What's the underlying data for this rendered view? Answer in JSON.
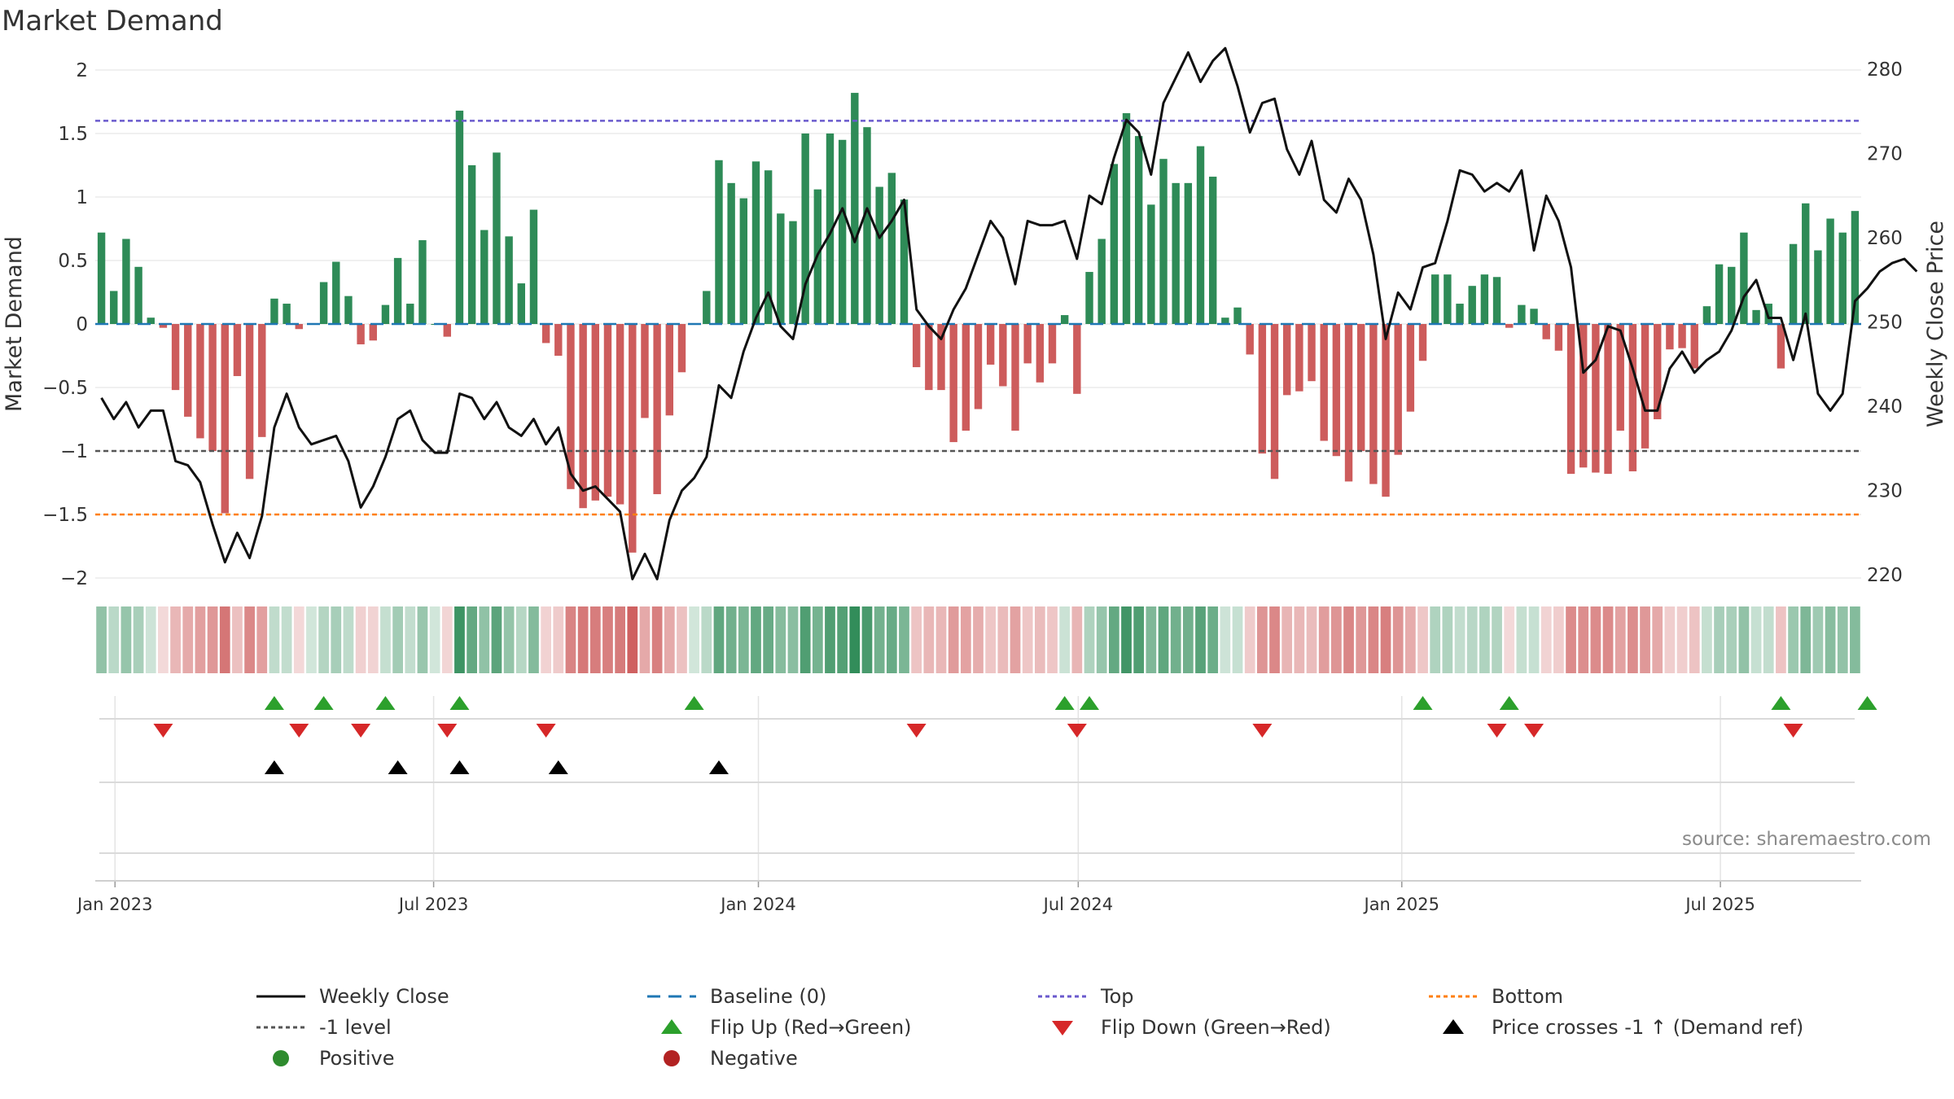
{
  "chart_data": {
    "type": "bar",
    "title": "Market Demand",
    "ylabel_left": "Market Demand",
    "ylabel_right": "Weekly Close Price",
    "ylim_left": [
      -2,
      2
    ],
    "ylim_right": [
      215,
      283
    ],
    "yticks_left": [
      "2",
      "1.5",
      "1",
      "0.5",
      "0",
      "−0.5",
      "−1",
      "−1.5",
      "−2"
    ],
    "yticks_left_values": [
      2,
      1.5,
      1,
      0.5,
      0,
      -0.5,
      -1,
      -1.5,
      -2
    ],
    "yticks_right": [
      "280",
      "270",
      "260",
      "250",
      "240",
      "230",
      "220"
    ],
    "yticks_right_values": [
      280,
      270,
      260,
      250,
      240,
      230,
      220
    ],
    "x_ticks": [
      {
        "label": "Jan 2023",
        "week": 1.6
      },
      {
        "label": "Jul 2023",
        "week": 27.4
      },
      {
        "label": "Jan 2024",
        "week": 53.7
      },
      {
        "label": "Jul 2024",
        "week": 79.6
      },
      {
        "label": "Jan 2025",
        "week": 105.8
      },
      {
        "label": "Jul 2025",
        "week": 131.6
      }
    ],
    "demand": [
      0.72,
      0.26,
      0.67,
      0.45,
      0.05,
      -0.03,
      -0.52,
      -0.73,
      -0.9,
      -1.0,
      -1.49,
      -0.41,
      -1.22,
      -0.89,
      0.2,
      0.16,
      -0.04,
      0.0,
      0.33,
      0.49,
      0.22,
      -0.16,
      -0.13,
      0.15,
      0.52,
      0.16,
      0.66,
      0.0,
      -0.1,
      1.68,
      1.25,
      0.74,
      1.35,
      0.69,
      0.32,
      0.9,
      -0.15,
      -0.25,
      -1.3,
      -1.45,
      -1.39,
      -1.36,
      -1.42,
      -1.8,
      -0.74,
      -1.34,
      -0.72,
      -0.38,
      0.0,
      0.26,
      1.29,
      1.11,
      0.99,
      1.28,
      1.21,
      0.87,
      0.81,
      1.5,
      1.06,
      1.5,
      1.45,
      1.82,
      1.55,
      1.08,
      1.19,
      0.98,
      -0.34,
      -0.52,
      -0.52,
      -0.93,
      -0.84,
      -0.67,
      -0.32,
      -0.49,
      -0.84,
      -0.31,
      -0.46,
      -0.31,
      0.07,
      -0.55,
      0.41,
      0.67,
      1.26,
      1.66,
      1.48,
      0.94,
      1.3,
      1.11,
      1.11,
      1.4,
      1.16,
      0.05,
      0.13,
      -0.24,
      -1.02,
      -1.22,
      -0.56,
      -0.53,
      -0.45,
      -0.92,
      -1.04,
      -1.24,
      -1.0,
      -1.26,
      -1.36,
      -1.03,
      -0.69,
      -0.29,
      0.39,
      0.39,
      0.16,
      0.3,
      0.39,
      0.37,
      -0.03,
      0.15,
      0.12,
      -0.12,
      -0.21,
      -1.18,
      -1.13,
      -1.17,
      -1.18,
      -0.84,
      -1.16,
      -0.98,
      -0.75,
      -0.2,
      -0.19,
      -0.35,
      0.14,
      0.47,
      0.45,
      0.72,
      0.11,
      0.16,
      -0.35,
      0.63,
      0.95,
      0.58,
      0.83,
      0.72,
      0.89
    ],
    "weekly_close": [
      241,
      238.5,
      240.5,
      237.5,
      239.5,
      239.5,
      233.5,
      233,
      231,
      226,
      221.5,
      225,
      222,
      227,
      237.5,
      241.5,
      237.5,
      235.5,
      236,
      236.5,
      233.5,
      228,
      230.5,
      234,
      238.5,
      239.5,
      236,
      234.5,
      234.5,
      241.5,
      241,
      238.5,
      240.5,
      237.5,
      236.5,
      238.5,
      235.5,
      237.5,
      232,
      230,
      230.5,
      229,
      227.5,
      219.5,
      222.5,
      219.5,
      226.5,
      230,
      231.5,
      234,
      242.5,
      241,
      246.5,
      250.5,
      253.5,
      249.5,
      248,
      254.5,
      258,
      260.5,
      263.5,
      259.5,
      263.5,
      260,
      262,
      264.5,
      251.5,
      249.5,
      248,
      251.5,
      254,
      258,
      262,
      260,
      254.5,
      262,
      261.5,
      261.5,
      262,
      257.5,
      265,
      264,
      269.5,
      274,
      272.5,
      267.5,
      276,
      279,
      282,
      278.5,
      281,
      282.5,
      278,
      272.5,
      276,
      276.5,
      270.5,
      267.5,
      271.5,
      264.5,
      263,
      267,
      264.5,
      258,
      248,
      253.5,
      251.5,
      256.5,
      257,
      262,
      268,
      267.5,
      265.5,
      266.5,
      265.5,
      268,
      258.5,
      265,
      262,
      256.5,
      244,
      245.5,
      249.5,
      249,
      244.5,
      239.5,
      239.5,
      244.5,
      246.5,
      244,
      245.5,
      246.5,
      249,
      253,
      255,
      250.5,
      250.5,
      245.5,
      251,
      241.5,
      239.5,
      241.5,
      252.5,
      254,
      256,
      257,
      257.5,
      256
    ],
    "reference_lines": {
      "top": 1.6,
      "bottom": -1.5,
      "minus_one": -1,
      "baseline": 0
    },
    "flip_up_weeks": [
      14,
      18,
      23,
      29,
      48,
      78,
      80,
      107,
      114,
      136,
      143
    ],
    "flip_down_weeks": [
      5,
      16,
      21,
      28,
      36,
      66,
      79,
      94,
      113,
      116,
      137
    ],
    "price_cross_weeks": [
      14,
      24,
      29,
      37,
      50
    ],
    "colors": {
      "positive_bar": "#2e8b57",
      "negative_bar": "#cd5c5c",
      "price_line": "#111111",
      "baseline": "#1f77b4",
      "top_line": "#6a5acd",
      "bottom_line": "#ff7f0e",
      "minus_one_line": "#555555",
      "flip_up": "#2ca02c",
      "flip_down": "#d62728",
      "cross": "#000000",
      "positive_dot": "#2e8b2e",
      "negative_dot": "#b22222"
    },
    "legend": [
      {
        "key": "weekly_close",
        "label": "Weekly Close"
      },
      {
        "key": "baseline",
        "label": "Baseline (0)"
      },
      {
        "key": "top",
        "label": "Top"
      },
      {
        "key": "bottom",
        "label": "Bottom"
      },
      {
        "key": "minus_one",
        "label": "-1 level"
      },
      {
        "key": "flip_up",
        "label": "Flip Up (Red→Green)"
      },
      {
        "key": "flip_down",
        "label": "Flip Down (Green→Red)"
      },
      {
        "key": "price_cross",
        "label": "Price crosses -1 ↑ (Demand ref)"
      },
      {
        "key": "positive",
        "label": "Positive"
      },
      {
        "key": "negative",
        "label": "Negative"
      }
    ]
  },
  "source_text": "source: sharemaestro.com"
}
